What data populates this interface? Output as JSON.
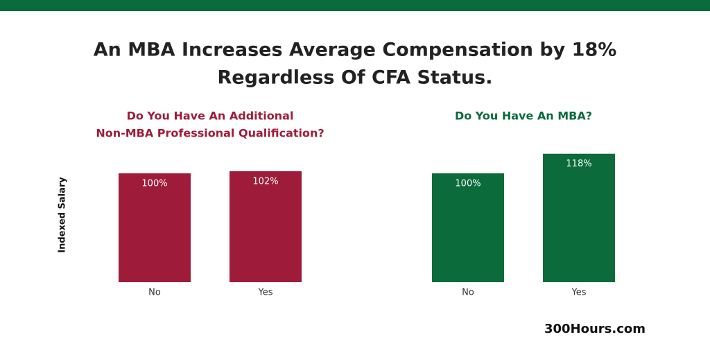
{
  "title": [
    "An MBA Increases Average Compensation by 18%",
    "Regardless Of CFA Status."
  ],
  "ylabel": "Indexed Salary",
  "source": "300Hours.com",
  "chart_data": [
    {
      "type": "bar",
      "title": [
        "Do You Have An Additional",
        "Non-MBA Professional Qualification?"
      ],
      "categories": [
        "No",
        "Yes"
      ],
      "values": [
        100,
        102
      ],
      "value_labels": [
        "100%",
        "102%"
      ],
      "color": "#9e1c3a"
    },
    {
      "type": "bar",
      "title": [
        "Do You Have An MBA?"
      ],
      "categories": [
        "No",
        "Yes"
      ],
      "values": [
        100,
        118
      ],
      "value_labels": [
        "100%",
        "118%"
      ],
      "color": "#0b6b3a"
    }
  ]
}
